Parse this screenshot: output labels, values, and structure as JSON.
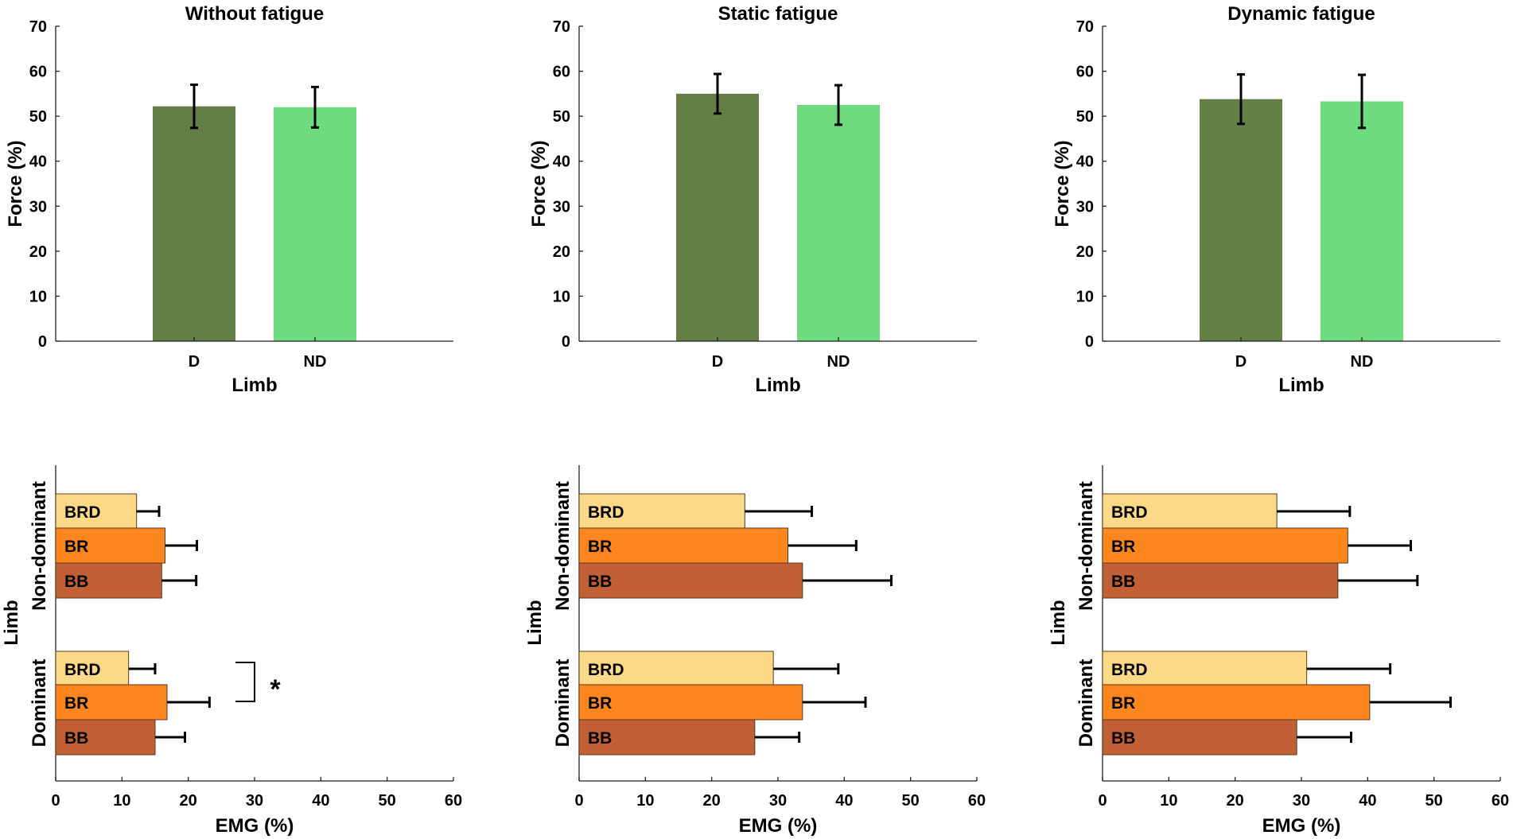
{
  "chart_data": {
    "force_charts": [
      {
        "type": "bar",
        "title": "Without fatigue",
        "categories": [
          "D",
          "ND"
        ],
        "values": [
          52.2,
          52.0
        ],
        "errors": [
          4.8,
          4.5
        ],
        "xlabel": "Limb",
        "ylabel": "Force (%)",
        "ylim": [
          0,
          70
        ],
        "yticks": [
          "0",
          "10",
          "20",
          "30",
          "40",
          "50",
          "60",
          "70"
        ]
      },
      {
        "type": "bar",
        "title": "Static fatigue",
        "categories": [
          "D",
          "ND"
        ],
        "values": [
          55.0,
          52.5
        ],
        "errors": [
          4.4,
          4.4
        ],
        "xlabel": "Limb",
        "ylabel": "Force (%)",
        "ylim": [
          0,
          70
        ],
        "yticks": [
          "0",
          "10",
          "20",
          "30",
          "40",
          "50",
          "60",
          "70"
        ]
      },
      {
        "type": "bar",
        "title": "Dynamic fatigue",
        "categories": [
          "D",
          "ND"
        ],
        "values": [
          53.8,
          53.3
        ],
        "errors": [
          5.5,
          5.9
        ],
        "xlabel": "Limb",
        "ylabel": "Force (%)",
        "ylim": [
          0,
          70
        ],
        "yticks": [
          "0",
          "10",
          "20",
          "30",
          "40",
          "50",
          "60",
          "70"
        ]
      }
    ],
    "emg_charts": [
      {
        "type": "bar",
        "orientation": "horizontal",
        "condition": "Without fatigue",
        "groups": [
          {
            "name": "Non-dominant",
            "bars": [
              {
                "muscle": "BRD",
                "value": 12.2,
                "error": 3.4
              },
              {
                "muscle": "BR",
                "value": 16.5,
                "error": 4.8
              },
              {
                "muscle": "BB",
                "value": 16.0,
                "error": 5.2
              }
            ]
          },
          {
            "name": "Dominant",
            "bars": [
              {
                "muscle": "BRD",
                "value": 11.0,
                "error": 4.0
              },
              {
                "muscle": "BR",
                "value": 16.8,
                "error": 6.4
              },
              {
                "muscle": "BB",
                "value": 15.0,
                "error": 4.5
              }
            ]
          }
        ],
        "annotation": "*",
        "xlabel": "EMG (%)",
        "ylabel": "Limb",
        "xlim": [
          0,
          60
        ],
        "xticks": [
          "0",
          "10",
          "20",
          "30",
          "40",
          "50",
          "60"
        ]
      },
      {
        "type": "bar",
        "orientation": "horizontal",
        "condition": "Static fatigue",
        "groups": [
          {
            "name": "Non-dominant",
            "bars": [
              {
                "muscle": "BRD",
                "value": 25.0,
                "error": 10.1
              },
              {
                "muscle": "BR",
                "value": 31.5,
                "error": 10.3
              },
              {
                "muscle": "BB",
                "value": 33.7,
                "error": 13.4
              }
            ]
          },
          {
            "name": "Dominant",
            "bars": [
              {
                "muscle": "BRD",
                "value": 29.3,
                "error": 9.8
              },
              {
                "muscle": "BR",
                "value": 33.7,
                "error": 9.5
              },
              {
                "muscle": "BB",
                "value": 26.5,
                "error": 6.7
              }
            ]
          }
        ],
        "xlabel": "EMG (%)",
        "ylabel": "Limb",
        "xlim": [
          0,
          60
        ],
        "xticks": [
          "0",
          "10",
          "20",
          "30",
          "40",
          "50",
          "60"
        ]
      },
      {
        "type": "bar",
        "orientation": "horizontal",
        "condition": "Dynamic fatigue",
        "groups": [
          {
            "name": "Non-dominant",
            "bars": [
              {
                "muscle": "BRD",
                "value": 26.3,
                "error": 11.0
              },
              {
                "muscle": "BR",
                "value": 37.0,
                "error": 9.5
              },
              {
                "muscle": "BB",
                "value": 35.5,
                "error": 12.0
              }
            ]
          },
          {
            "name": "Dominant",
            "bars": [
              {
                "muscle": "BRD",
                "value": 30.8,
                "error": 12.6
              },
              {
                "muscle": "BR",
                "value": 40.3,
                "error": 12.2
              },
              {
                "muscle": "BB",
                "value": 29.3,
                "error": 8.2
              }
            ]
          }
        ],
        "xlabel": "EMG (%)",
        "ylabel": "Limb",
        "xlim": [
          0,
          60
        ],
        "xticks": [
          "0",
          "10",
          "20",
          "30",
          "40",
          "50",
          "60"
        ]
      }
    ]
  },
  "colors": {
    "D": "#647f45",
    "ND": "#6edb7e",
    "BRD": "#fcd986",
    "BR": "#fd871e",
    "BB": "#c15f35",
    "axis": "#222222",
    "errorbar": "#000000"
  }
}
